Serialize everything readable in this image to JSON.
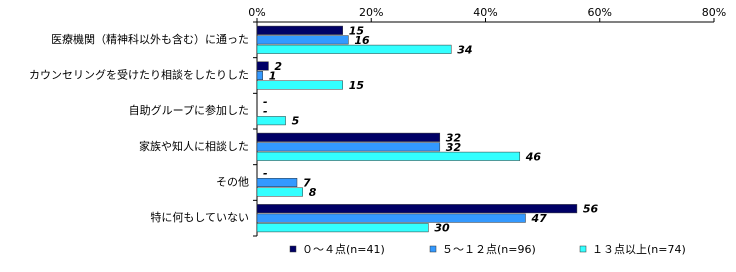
{
  "chart_data": {
    "type": "hbar",
    "categories": [
      "医療機関（精神科以外も含む）に通った",
      "カウンセリングを受けたり相談をしたりした",
      "自助グループに参加した",
      "家族や知人に相談した",
      "その他",
      "特に何もしていない"
    ],
    "series": [
      {
        "name": "０～４点(n=41)",
        "color": "#000066",
        "values": [
          15,
          2,
          0,
          32,
          0,
          56
        ],
        "value_labels": [
          "15",
          "2",
          "-",
          "32",
          "-",
          "56"
        ]
      },
      {
        "name": "５～１２点(n=96)",
        "color": "#3399ff",
        "values": [
          16,
          1,
          0,
          32,
          7,
          47
        ],
        "value_labels": [
          "16",
          "1",
          "-",
          "32",
          "7",
          "47"
        ]
      },
      {
        "name": "１３点以上(n=74)",
        "color": "#33ffff",
        "values": [
          34,
          15,
          5,
          46,
          8,
          30
        ]
      }
    ],
    "xlim": [
      0,
      80
    ],
    "xticks": [
      {
        "value": 0,
        "label": "0%"
      },
      {
        "value": 20,
        "label": "20%"
      },
      {
        "value": 40,
        "label": "40%"
      },
      {
        "value": 60,
        "label": "60%"
      },
      {
        "value": 80,
        "label": "80%"
      }
    ]
  }
}
